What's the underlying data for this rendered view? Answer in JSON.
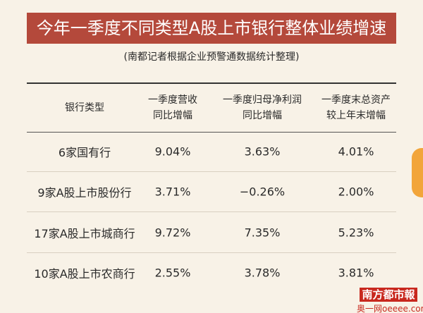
{
  "header": {
    "title": "今年一季度不同类型A股上市银行整体业绩增速",
    "subtitle": "(南都记者根据企业预警通数据统计整理)"
  },
  "table": {
    "columns": [
      [
        "银行类型"
      ],
      [
        "一季度营收",
        "同比增幅"
      ],
      [
        "一季度归母净利润",
        "同比增幅"
      ],
      [
        "一季度末总资产",
        "较上年末增幅"
      ]
    ],
    "rows": [
      [
        "6家国有行",
        "9.04%",
        "3.63%",
        "4.01%"
      ],
      [
        "9家A股上市股份行",
        "3.71%",
        "−0.26%",
        "2.00%"
      ],
      [
        "17家A股上市城商行",
        "9.72%",
        "7.35%",
        "5.23%"
      ],
      [
        "10家A股上市农商行",
        "2.55%",
        "3.78%",
        "3.81%"
      ]
    ]
  },
  "watermark": {
    "logo": "南方都市報",
    "site": "奥一网oeeee.com"
  }
}
